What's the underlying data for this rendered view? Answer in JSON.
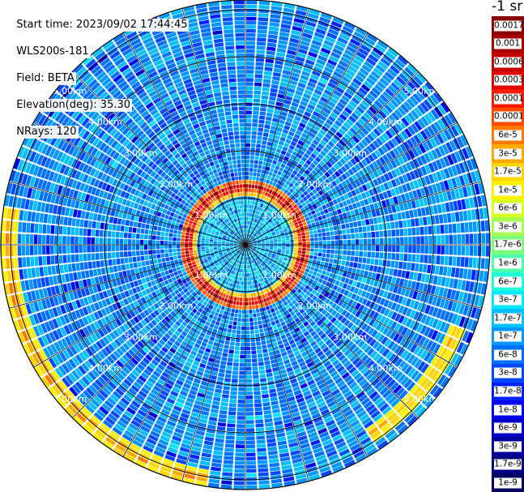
{
  "info": {
    "start_time": "Start time: 2023/09/02 17:44:45",
    "station": "WLS200s-181",
    "field": "Field: BETA",
    "elevation": "Elevation(deg): 35.30",
    "nrays": "NRays: 120"
  },
  "colorbar": {
    "unit_label": "-1 sr",
    "entries": [
      {
        "label": "0.0017",
        "color": "#8b0000"
      },
      {
        "label": "0.001",
        "color": "#a40000"
      },
      {
        "label": "0.0006",
        "color": "#c40000"
      },
      {
        "label": "0.0003",
        "color": "#e20000"
      },
      {
        "label": "0.00017",
        "color": "#ff1a00"
      },
      {
        "label": "0.0001",
        "color": "#ff4a00"
      },
      {
        "label": "6e-5",
        "color": "#ff7a00"
      },
      {
        "label": "3e-5",
        "color": "#ffa800"
      },
      {
        "label": "1.7e-5",
        "color": "#ffd500"
      },
      {
        "label": "1e-5",
        "color": "#fff000"
      },
      {
        "label": "6e-6",
        "color": "#d8ff20"
      },
      {
        "label": "3e-6",
        "color": "#a8ff50"
      },
      {
        "label": "1.7e-6",
        "color": "#7cff7c"
      },
      {
        "label": "1e-6",
        "color": "#4cffaa"
      },
      {
        "label": "6e-7",
        "color": "#22ffd8"
      },
      {
        "label": "3e-7",
        "color": "#00e8ff"
      },
      {
        "label": "1.7e-7",
        "color": "#00c0ff"
      },
      {
        "label": "1e-7",
        "color": "#0098ff"
      },
      {
        "label": "6e-8",
        "color": "#0070ff"
      },
      {
        "label": "3e-8",
        "color": "#0048ff"
      },
      {
        "label": "1.7e-8",
        "color": "#0020ff"
      },
      {
        "label": "1e-8",
        "color": "#0000f0"
      },
      {
        "label": "6e-9",
        "color": "#0000c8"
      },
      {
        "label": "3e-9",
        "color": "#0000a0"
      },
      {
        "label": "1.7e-9",
        "color": "#000080"
      },
      {
        "label": "1e-9",
        "color": "#000060"
      }
    ]
  },
  "chart_data": {
    "type": "heatmap",
    "projection": "polar PPI",
    "range_ring_labels": [
      "1.00km",
      "2.00km",
      "3.00km",
      "4.00km",
      "5.00km"
    ],
    "ray_count": 120,
    "features": [
      {
        "description": "ring of high backscatter",
        "range_km": 1.2,
        "value_range": [
          "1e-5",
          "0.001"
        ]
      },
      {
        "description": "southwest arc",
        "range_km": 5.0,
        "value_range": [
          "6e-6",
          "6e-5"
        ]
      },
      {
        "description": "southeast arc",
        "range_km": 4.8,
        "value_range": [
          "6e-6",
          "3e-5"
        ]
      }
    ],
    "background_value_range": [
      "1e-8",
      "3e-7"
    ]
  }
}
